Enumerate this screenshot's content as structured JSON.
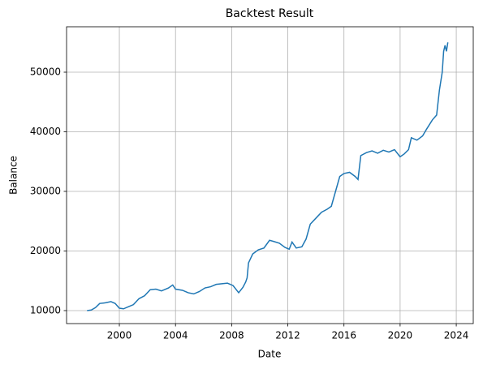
{
  "chart_data": {
    "type": "line",
    "title": "Backtest Result",
    "x_label": "Date",
    "y_label": "Balance",
    "x": [
      1997.7,
      1998.0,
      1998.3,
      1998.6,
      1999.0,
      1999.4,
      1999.7,
      2000.0,
      2000.3,
      2000.7,
      2001.0,
      2001.4,
      2001.8,
      2002.2,
      2002.6,
      2003.0,
      2003.5,
      2003.8,
      2004.0,
      2004.5,
      2004.9,
      2005.3,
      2005.7,
      2006.1,
      2006.5,
      2006.9,
      2007.3,
      2007.7,
      2008.1,
      2008.5,
      2008.8,
      2009.0,
      2009.1,
      2009.2,
      2009.5,
      2009.9,
      2010.3,
      2010.7,
      2011.0,
      2011.4,
      2011.8,
      2012.1,
      2012.3,
      2012.6,
      2013.0,
      2013.3,
      2013.6,
      2014.0,
      2014.4,
      2014.8,
      2015.1,
      2015.4,
      2015.7,
      2016.0,
      2016.4,
      2016.8,
      2017.0,
      2017.2,
      2017.6,
      2018.0,
      2018.4,
      2018.8,
      2019.2,
      2019.6,
      2020.0,
      2020.3,
      2020.6,
      2020.8,
      2021.2,
      2021.6,
      2021.9,
      2022.3,
      2022.6,
      2022.8,
      2023.0,
      2023.1,
      2023.2,
      2023.3,
      2023.4
    ],
    "series": [
      {
        "name": "Balance",
        "color": "#1f77b4",
        "values": [
          10000,
          10100,
          10500,
          11200,
          11300,
          11500,
          11200,
          10400,
          10300,
          10700,
          11000,
          12000,
          12500,
          13500,
          13600,
          13300,
          13800,
          14300,
          13600,
          13400,
          13000,
          12800,
          13200,
          13800,
          14000,
          14400,
          14500,
          14600,
          14200,
          13000,
          13900,
          14800,
          15500,
          18000,
          19500,
          20200,
          20500,
          21800,
          21600,
          21300,
          20600,
          20300,
          21500,
          20500,
          20700,
          22000,
          24500,
          25500,
          26500,
          27000,
          27500,
          30000,
          32500,
          33000,
          33200,
          32500,
          32000,
          36000,
          36500,
          36800,
          36400,
          36900,
          36600,
          37000,
          35800,
          36300,
          37000,
          39000,
          38600,
          39300,
          40500,
          42000,
          42800,
          47000,
          50000,
          53500,
          54500,
          53500,
          55000
        ]
      }
    ],
    "xlim": [
      1996.24,
      2025.21
    ],
    "xticks": [
      2000,
      2004,
      2008,
      2012,
      2016,
      2020,
      2024
    ],
    "ylim": [
      7820,
      57620
    ],
    "yticks": [
      10000,
      20000,
      30000,
      40000,
      50000
    ],
    "grid": true
  }
}
